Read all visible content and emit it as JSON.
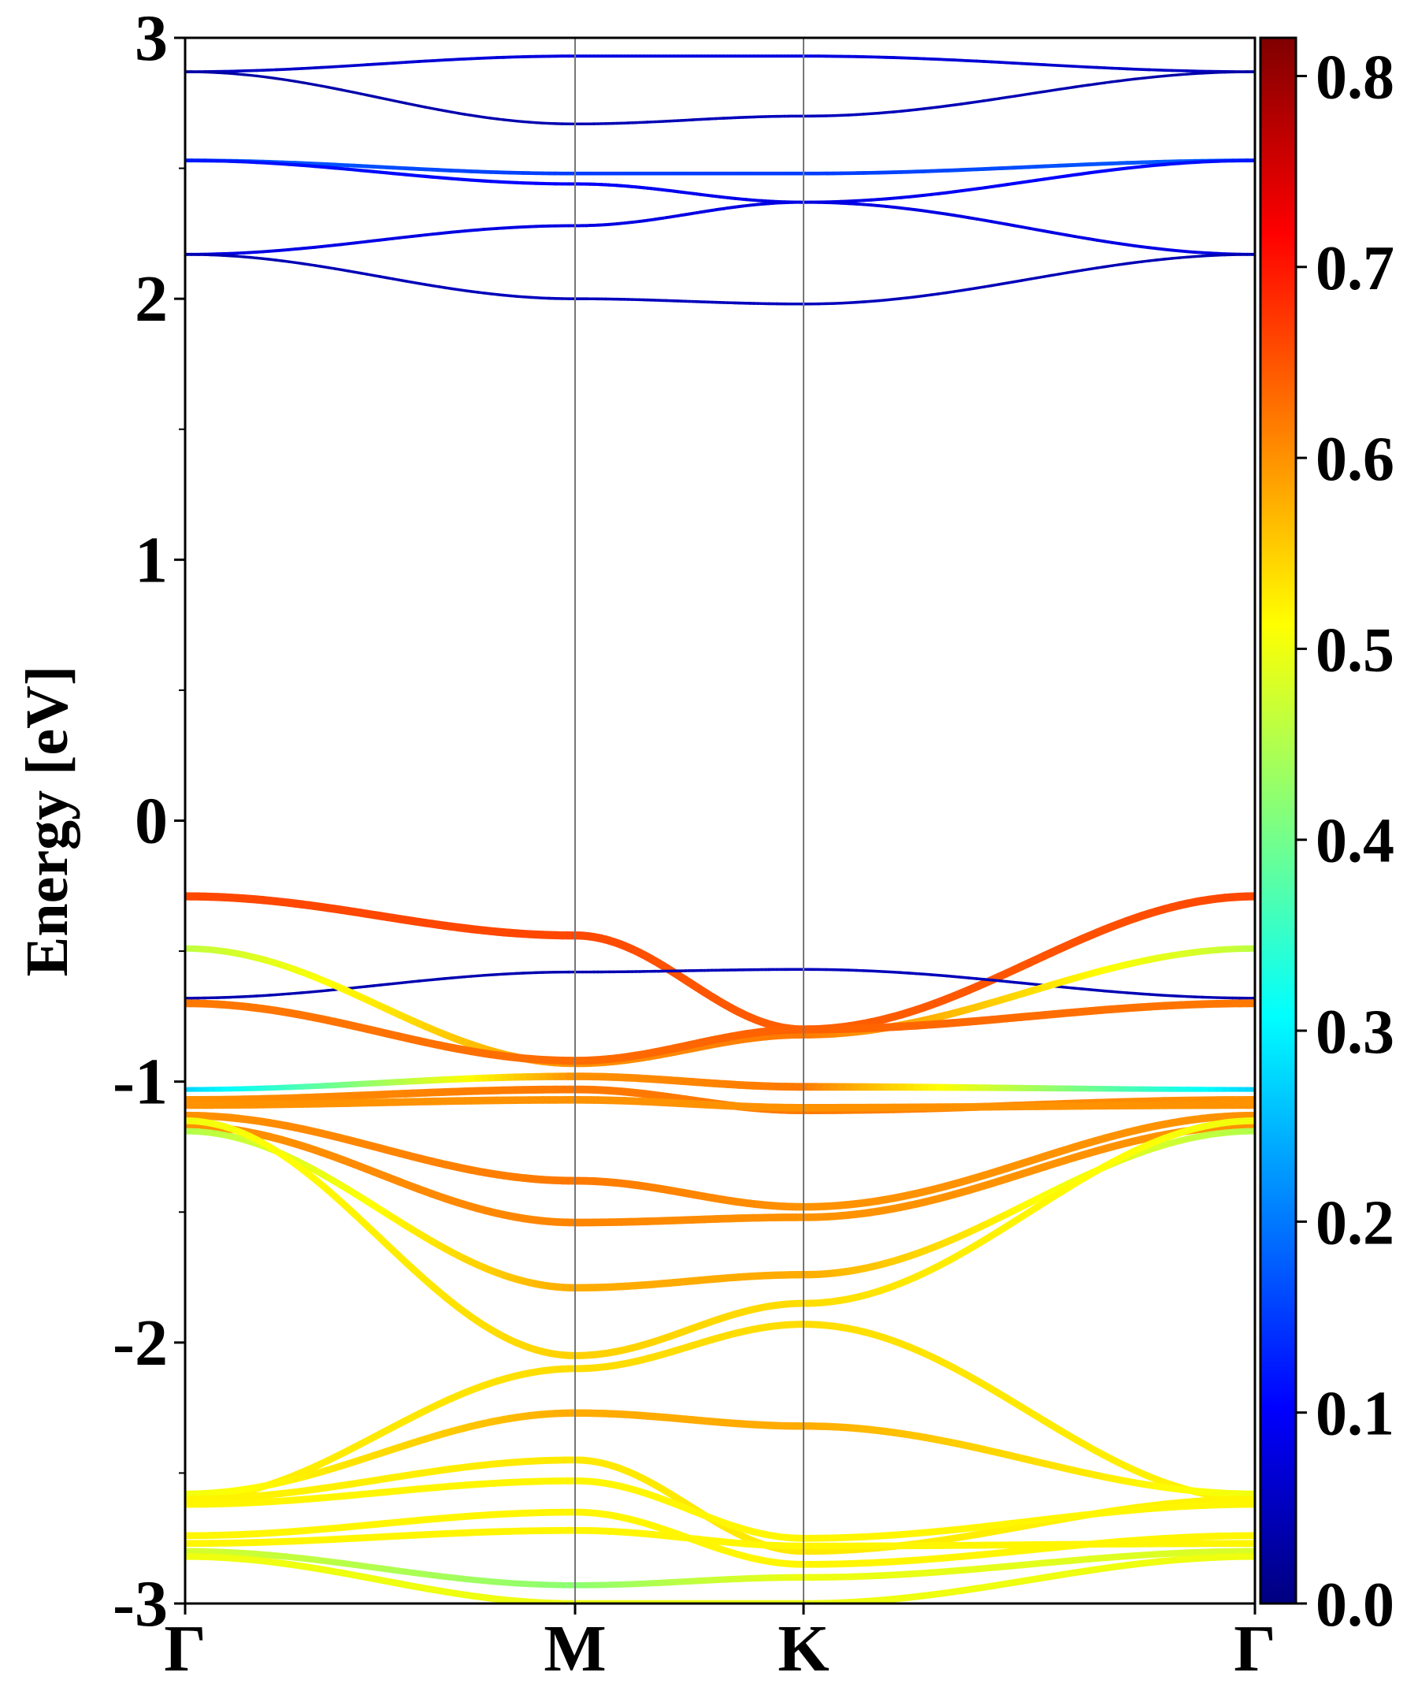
{
  "chart_data": {
    "type": "line",
    "subtype": "band-structure",
    "ylabel": "Energy [eV]",
    "ylim": [
      -3,
      3
    ],
    "y_ticks": [
      "3",
      "2",
      "1",
      "0",
      "-1",
      "-2",
      "-3"
    ],
    "x_path": [
      "Γ",
      "M",
      "K",
      "Γ"
    ],
    "kpath_positions": [
      0,
      1.0,
      0.577,
      1.155
    ],
    "grid": "vertical lines at high-symmetry points",
    "colorbar": {
      "min": 0.0,
      "max": 0.82,
      "ticks": [
        "0.0",
        "0.1",
        "0.2",
        "0.3",
        "0.4",
        "0.5",
        "0.6",
        "0.7",
        "0.8"
      ],
      "colormap": "jet",
      "colors": [
        "#00007f",
        "#0000ff",
        "#007fff",
        "#00ffff",
        "#7fff7f",
        "#ffff00",
        "#ff7f00",
        "#ff0000",
        "#7f0000"
      ]
    },
    "series": [
      {
        "energies": [
          2.87,
          2.93,
          2.93,
          2.87
        ],
        "weights": [
          0.05,
          0.08,
          0.08,
          0.05
        ]
      },
      {
        "energies": [
          2.87,
          2.67,
          2.7,
          2.87
        ],
        "weights": [
          0.03,
          0.04,
          0.05,
          0.03
        ]
      },
      {
        "energies": [
          2.53,
          2.48,
          2.48,
          2.53
        ],
        "weights": [
          0.18,
          0.15,
          0.15,
          0.18
        ]
      },
      {
        "energies": [
          2.53,
          2.44,
          2.37,
          2.53
        ],
        "weights": [
          0.12,
          0.1,
          0.08,
          0.12
        ]
      },
      {
        "energies": [
          2.17,
          2.28,
          2.37,
          2.17
        ],
        "weights": [
          0.08,
          0.08,
          0.08,
          0.08
        ]
      },
      {
        "energies": [
          2.17,
          2.0,
          1.98,
          2.17
        ],
        "weights": [
          0.04,
          0.05,
          0.05,
          0.04
        ]
      },
      {
        "energies": [
          -0.29,
          -0.44,
          -0.8,
          -0.29
        ],
        "weights": [
          0.66,
          0.66,
          0.64,
          0.66
        ]
      },
      {
        "energies": [
          -0.68,
          -0.58,
          -0.57,
          -0.68
        ],
        "weights": [
          0.04,
          0.04,
          0.05,
          0.04
        ]
      },
      {
        "energies": [
          -0.49,
          -0.93,
          -0.82,
          -0.49
        ],
        "weights": [
          0.46,
          0.6,
          0.62,
          0.46
        ]
      },
      {
        "energies": [
          -0.7,
          -0.92,
          -0.8,
          -0.7
        ],
        "weights": [
          0.62,
          0.63,
          0.64,
          0.62
        ]
      },
      {
        "energies": [
          -1.03,
          -0.98,
          -1.02,
          -1.03
        ],
        "weights": [
          0.27,
          0.6,
          0.62,
          0.27
        ]
      },
      {
        "energies": [
          -1.07,
          -1.03,
          -1.11,
          -1.07
        ],
        "weights": [
          0.6,
          0.62,
          0.62,
          0.6
        ]
      },
      {
        "energies": [
          -1.09,
          -1.07,
          -1.1,
          -1.09
        ],
        "weights": [
          0.6,
          0.6,
          0.6,
          0.6
        ]
      },
      {
        "energies": [
          -1.13,
          -1.38,
          -1.48,
          -1.13
        ],
        "weights": [
          0.6,
          0.62,
          0.6,
          0.6
        ]
      },
      {
        "energies": [
          -1.17,
          -1.54,
          -1.52,
          -1.17
        ],
        "weights": [
          0.6,
          0.61,
          0.6,
          0.6
        ]
      },
      {
        "energies": [
          -1.19,
          -1.79,
          -1.74,
          -1.19
        ],
        "weights": [
          0.45,
          0.58,
          0.58,
          0.45
        ]
      },
      {
        "energies": [
          -1.15,
          -2.05,
          -1.85,
          -1.15
        ],
        "weights": [
          0.5,
          0.55,
          0.54,
          0.5
        ]
      },
      {
        "energies": [
          -2.6,
          -2.1,
          -1.93,
          -2.6
        ],
        "weights": [
          0.52,
          0.54,
          0.54,
          0.52
        ]
      },
      {
        "energies": [
          -2.58,
          -2.27,
          -2.32,
          -2.58
        ],
        "weights": [
          0.5,
          0.58,
          0.58,
          0.5
        ]
      },
      {
        "energies": [
          -2.6,
          -2.45,
          -2.8,
          -2.6
        ],
        "weights": [
          0.52,
          0.53,
          0.53,
          0.52
        ]
      },
      {
        "energies": [
          -2.62,
          -2.53,
          -2.75,
          -2.62
        ],
        "weights": [
          0.52,
          0.52,
          0.52,
          0.52
        ]
      },
      {
        "energies": [
          -2.74,
          -2.65,
          -2.85,
          -2.74
        ],
        "weights": [
          0.52,
          0.52,
          0.52,
          0.52
        ]
      },
      {
        "energies": [
          -2.77,
          -2.72,
          -2.78,
          -2.77
        ],
        "weights": [
          0.52,
          0.52,
          0.52,
          0.52
        ]
      },
      {
        "energies": [
          -2.8,
          -2.93,
          -2.9,
          -2.8
        ],
        "weights": [
          0.48,
          0.42,
          0.5,
          0.48
        ]
      },
      {
        "energies": [
          -2.82,
          -3.0,
          -3.0,
          -2.82
        ],
        "weights": [
          0.5,
          0.5,
          0.5,
          0.5
        ]
      }
    ]
  }
}
